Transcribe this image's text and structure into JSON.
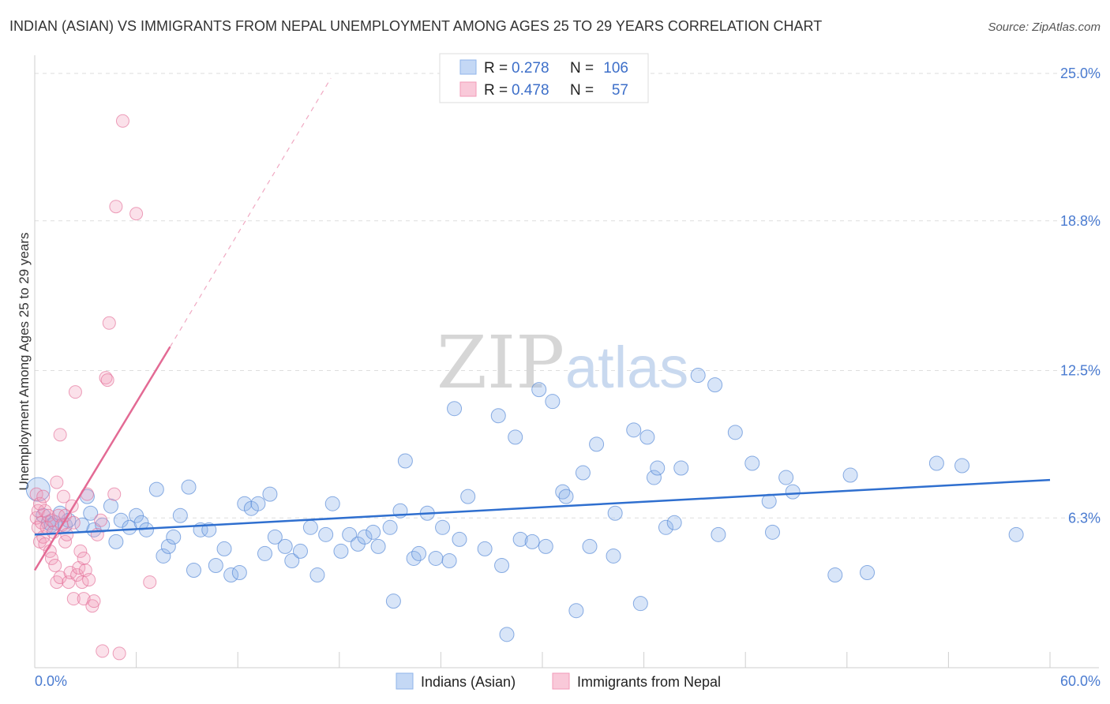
{
  "title": "INDIAN (ASIAN) VS IMMIGRANTS FROM NEPAL UNEMPLOYMENT AMONG AGES 25 TO 29 YEARS CORRELATION CHART",
  "source": "Source: ZipAtlas.com",
  "watermark": {
    "zip": "ZIP",
    "atlas": "atlas"
  },
  "legend_top": {
    "rows": [
      {
        "r_label": "R =",
        "r_value": "0.278",
        "n_label": "N =",
        "n_value": "106",
        "color": "#8fb4ea"
      },
      {
        "r_label": "R =",
        "r_value": "0.478",
        "n_label": "N =",
        "n_value": "57",
        "color": "#f29ab8"
      }
    ]
  },
  "legend_bottom": {
    "items": [
      {
        "label": "Indians (Asian)",
        "color": "#8fb4ea"
      },
      {
        "label": "Immigrants from Nepal",
        "color": "#f29ab8"
      }
    ]
  },
  "chart_data": {
    "type": "scatter",
    "title": "INDIAN (ASIAN) VS IMMIGRANTS FROM NEPAL UNEMPLOYMENT AMONG AGES 25 TO 29 YEARS CORRELATION CHART",
    "xlabel": "",
    "ylabel": "Unemployment Among Ages 25 to 29 years",
    "xlim": [
      0,
      60
    ],
    "ylim": [
      0,
      25.5
    ],
    "x_tick_labels": [
      "0.0%",
      "60.0%"
    ],
    "y_ticks": [
      6.3,
      12.5,
      18.8,
      25.0
    ],
    "y_tick_labels": [
      "6.3%",
      "12.5%",
      "18.8%",
      "25.0%"
    ],
    "grid": "horizontal dashed",
    "colors": {
      "indian": "#8fb4ea",
      "indian_line": "#2f6fcf",
      "nepal": "#f29ab8",
      "nepal_line": "#e36a94"
    },
    "series": [
      {
        "name": "Indians (Asian)",
        "points": [
          [
            0.2,
            7.5
          ],
          [
            0.5,
            6.4
          ],
          [
            0.8,
            6.1
          ],
          [
            1.0,
            6.0
          ],
          [
            1.2,
            6.1
          ],
          [
            1.5,
            6.5
          ],
          [
            1.8,
            6.0
          ],
          [
            2.0,
            6.2
          ],
          [
            2.8,
            6.0
          ],
          [
            3.1,
            7.2
          ],
          [
            3.3,
            6.5
          ],
          [
            3.5,
            5.8
          ],
          [
            4.0,
            6.0
          ],
          [
            4.5,
            6.8
          ],
          [
            4.8,
            5.3
          ],
          [
            5.1,
            6.2
          ],
          [
            5.6,
            5.9
          ],
          [
            6.0,
            6.4
          ],
          [
            6.3,
            6.1
          ],
          [
            6.6,
            5.8
          ],
          [
            7.2,
            7.5
          ],
          [
            7.6,
            4.7
          ],
          [
            7.9,
            5.1
          ],
          [
            8.2,
            5.5
          ],
          [
            8.6,
            6.4
          ],
          [
            9.1,
            7.6
          ],
          [
            9.4,
            4.1
          ],
          [
            9.8,
            5.8
          ],
          [
            10.3,
            5.8
          ],
          [
            10.7,
            4.3
          ],
          [
            11.2,
            5.0
          ],
          [
            11.6,
            3.9
          ],
          [
            12.1,
            4.0
          ],
          [
            12.4,
            6.9
          ],
          [
            12.8,
            6.7
          ],
          [
            13.2,
            6.9
          ],
          [
            13.6,
            4.8
          ],
          [
            13.9,
            7.3
          ],
          [
            14.2,
            5.5
          ],
          [
            14.8,
            5.1
          ],
          [
            15.2,
            4.5
          ],
          [
            15.7,
            4.9
          ],
          [
            16.3,
            5.9
          ],
          [
            16.7,
            3.9
          ],
          [
            17.2,
            5.6
          ],
          [
            17.6,
            6.9
          ],
          [
            18.1,
            4.9
          ],
          [
            18.6,
            5.6
          ],
          [
            19.1,
            5.2
          ],
          [
            19.5,
            5.5
          ],
          [
            20.0,
            5.7
          ],
          [
            20.3,
            5.1
          ],
          [
            21.0,
            5.9
          ],
          [
            21.2,
            2.8
          ],
          [
            21.6,
            6.6
          ],
          [
            21.9,
            8.7
          ],
          [
            22.4,
            4.6
          ],
          [
            22.7,
            4.8
          ],
          [
            23.2,
            6.5
          ],
          [
            23.7,
            4.6
          ],
          [
            24.1,
            5.9
          ],
          [
            24.5,
            4.5
          ],
          [
            24.8,
            10.9
          ],
          [
            25.1,
            5.4
          ],
          [
            25.6,
            7.2
          ],
          [
            26.6,
            5.0
          ],
          [
            27.4,
            10.6
          ],
          [
            27.6,
            4.3
          ],
          [
            27.9,
            1.4
          ],
          [
            28.4,
            9.7
          ],
          [
            28.7,
            5.4
          ],
          [
            29.4,
            5.3
          ],
          [
            29.8,
            11.7
          ],
          [
            30.2,
            5.1
          ],
          [
            30.6,
            11.2
          ],
          [
            31.2,
            7.4
          ],
          [
            31.4,
            7.2
          ],
          [
            32.0,
            2.4
          ],
          [
            32.4,
            8.2
          ],
          [
            32.8,
            5.1
          ],
          [
            33.2,
            9.4
          ],
          [
            34.2,
            4.7
          ],
          [
            34.3,
            6.5
          ],
          [
            35.4,
            10.0
          ],
          [
            35.8,
            2.7
          ],
          [
            36.2,
            9.7
          ],
          [
            36.6,
            8.0
          ],
          [
            36.8,
            8.4
          ],
          [
            37.3,
            5.9
          ],
          [
            37.8,
            6.1
          ],
          [
            38.2,
            8.4
          ],
          [
            39.2,
            12.3
          ],
          [
            40.2,
            11.9
          ],
          [
            40.4,
            5.6
          ],
          [
            41.4,
            9.9
          ],
          [
            42.4,
            8.6
          ],
          [
            43.4,
            7.0
          ],
          [
            43.6,
            5.7
          ],
          [
            44.4,
            8.0
          ],
          [
            44.8,
            7.4
          ],
          [
            47.3,
            3.9
          ],
          [
            48.2,
            8.1
          ],
          [
            49.2,
            4.0
          ],
          [
            53.3,
            8.6
          ],
          [
            54.8,
            8.5
          ],
          [
            58.0,
            5.6
          ]
        ],
        "trend": [
          [
            0,
            5.6
          ],
          [
            60,
            7.9
          ]
        ]
      },
      {
        "name": "Immigrants from Nepal",
        "points": [
          [
            0.1,
            6.3
          ],
          [
            0.2,
            5.9
          ],
          [
            0.2,
            6.6
          ],
          [
            0.3,
            5.3
          ],
          [
            0.4,
            6.1
          ],
          [
            0.5,
            5.5
          ],
          [
            0.6,
            5.2
          ],
          [
            0.6,
            6.6
          ],
          [
            0.7,
            5.9
          ],
          [
            0.8,
            6.4
          ],
          [
            0.9,
            4.9
          ],
          [
            1.0,
            6.2
          ],
          [
            1.0,
            4.6
          ],
          [
            1.1,
            5.7
          ],
          [
            1.2,
            4.3
          ],
          [
            1.3,
            3.6
          ],
          [
            1.3,
            7.8
          ],
          [
            1.4,
            6.4
          ],
          [
            1.5,
            9.8
          ],
          [
            1.5,
            3.8
          ],
          [
            1.6,
            6.0
          ],
          [
            1.7,
            7.2
          ],
          [
            1.8,
            5.3
          ],
          [
            1.8,
            6.4
          ],
          [
            1.9,
            5.6
          ],
          [
            2.0,
            3.6
          ],
          [
            2.1,
            4.0
          ],
          [
            2.2,
            6.8
          ],
          [
            2.3,
            2.9
          ],
          [
            2.3,
            6.1
          ],
          [
            2.4,
            11.6
          ],
          [
            2.5,
            3.9
          ],
          [
            2.6,
            4.2
          ],
          [
            2.7,
            4.9
          ],
          [
            2.8,
            3.6
          ],
          [
            2.9,
            2.9
          ],
          [
            2.9,
            4.6
          ],
          [
            3.0,
            4.1
          ],
          [
            3.1,
            7.3
          ],
          [
            3.2,
            3.7
          ],
          [
            3.4,
            2.6
          ],
          [
            3.5,
            2.8
          ],
          [
            3.7,
            5.6
          ],
          [
            3.9,
            6.2
          ],
          [
            4.0,
            0.7
          ],
          [
            4.2,
            12.2
          ],
          [
            4.4,
            14.5
          ],
          [
            4.7,
            7.3
          ],
          [
            4.8,
            19.4
          ],
          [
            5.0,
            0.6
          ],
          [
            5.2,
            23.0
          ],
          [
            6.0,
            19.1
          ],
          [
            6.8,
            3.6
          ],
          [
            4.3,
            12.1
          ],
          [
            0.1,
            7.3
          ],
          [
            0.3,
            6.9
          ],
          [
            0.5,
            7.2
          ]
        ],
        "trend_solid": [
          [
            0,
            4.1
          ],
          [
            8,
            13.5
          ]
        ],
        "trend_dashed": [
          [
            8,
            13.5
          ],
          [
            17.5,
            24.8
          ]
        ]
      }
    ]
  }
}
